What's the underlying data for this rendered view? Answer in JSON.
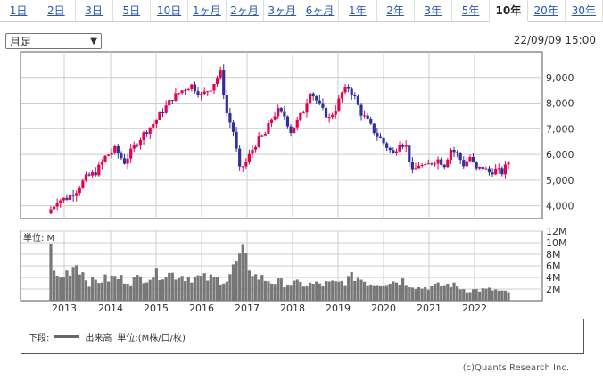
{
  "tabs": [
    "1日",
    "2日",
    "3日",
    "5日",
    "10日",
    "1ヶ月",
    "2ヶ月",
    "3ヶ月",
    "6ヶ月",
    "1年",
    "2年",
    "3年",
    "5年",
    "10年",
    "20年",
    "30年"
  ],
  "active_tab": "10年",
  "period_select": "月足",
  "datetime": "22/09/09 15:00",
  "volume_unit_label": "単位: M",
  "legend": {
    "prefix": "下段:",
    "series": "出来高",
    "unit": "単位:(M株/口/枚)"
  },
  "copyright": "(c)Quants Research Inc.",
  "colors": {
    "up": "#e8004f",
    "down": "#2f2fa0",
    "volume": "#777777",
    "grid": "#cccccc"
  },
  "chart_data": [
    {
      "type": "candlestick",
      "title": "",
      "ylim": [
        3500,
        10000
      ],
      "y_ticks": [
        "4,000",
        "5,000",
        "6,000",
        "7,000",
        "8,000",
        "9,000"
      ],
      "y_tick_values": [
        4000,
        5000,
        6000,
        7000,
        8000,
        9000
      ],
      "x_tick_labels": [
        "2013",
        "2014",
        "2015",
        "2016",
        "2017",
        "2018",
        "2019",
        "2020",
        "2021",
        "2022"
      ],
      "grid": true,
      "anchors": [
        [
          0,
          3700
        ],
        [
          3,
          4200
        ],
        [
          6,
          4300
        ],
        [
          9,
          4600
        ],
        [
          12,
          5100
        ],
        [
          15,
          5300
        ],
        [
          18,
          5900
        ],
        [
          21,
          6200
        ],
        [
          24,
          5700
        ],
        [
          27,
          6300
        ],
        [
          30,
          6800
        ],
        [
          33,
          7200
        ],
        [
          36,
          7700
        ],
        [
          39,
          8200
        ],
        [
          42,
          8500
        ],
        [
          45,
          8700
        ],
        [
          48,
          8300
        ],
        [
          51,
          8600
        ],
        [
          54,
          9200
        ],
        [
          56,
          7600
        ],
        [
          58,
          6900
        ],
        [
          60,
          5400
        ],
        [
          62,
          5700
        ],
        [
          64,
          6200
        ],
        [
          66,
          6600
        ],
        [
          68,
          6800
        ],
        [
          70,
          7400
        ],
        [
          72,
          7700
        ],
        [
          74,
          7500
        ],
        [
          76,
          6900
        ],
        [
          78,
          7300
        ],
        [
          80,
          7700
        ],
        [
          82,
          8500
        ],
        [
          84,
          8100
        ],
        [
          86,
          7700
        ],
        [
          88,
          7400
        ],
        [
          90,
          7800
        ],
        [
          92,
          8400
        ],
        [
          94,
          8600
        ],
        [
          96,
          8200
        ],
        [
          98,
          7600
        ],
        [
          100,
          7300
        ],
        [
          102,
          6900
        ],
        [
          104,
          6600
        ],
        [
          106,
          6300
        ],
        [
          108,
          6000
        ],
        [
          110,
          6500
        ],
        [
          112,
          6300
        ],
        [
          114,
          5300
        ],
        [
          116,
          5600
        ],
        [
          118,
          5500
        ],
        [
          120,
          5700
        ],
        [
          122,
          5800
        ],
        [
          124,
          5600
        ],
        [
          126,
          6200
        ],
        [
          128,
          6000
        ],
        [
          130,
          5600
        ],
        [
          132,
          5900
        ],
        [
          134,
          5400
        ],
        [
          136,
          5500
        ],
        [
          138,
          5300
        ],
        [
          140,
          5400
        ],
        [
          142,
          5300
        ],
        [
          144,
          5700
        ]
      ],
      "n_bars": 144
    },
    {
      "type": "bar",
      "title": "",
      "ylim": [
        0,
        12
      ],
      "y_ticks": [
        "2M",
        "4M",
        "6M",
        "8M",
        "10M",
        "12M"
      ],
      "y_tick_values": [
        2,
        4,
        6,
        8,
        10,
        12
      ],
      "x_tick_labels": [
        "2013",
        "2014",
        "2015",
        "2016",
        "2017",
        "2018",
        "2019",
        "2020",
        "2021",
        "2022"
      ],
      "anchors": [
        [
          0,
          11.8
        ],
        [
          1,
          4.5
        ],
        [
          3,
          3.8
        ],
        [
          8,
          6.5
        ],
        [
          12,
          3.2
        ],
        [
          20,
          4.0
        ],
        [
          25,
          3.5
        ],
        [
          35,
          4.8
        ],
        [
          45,
          4.0
        ],
        [
          55,
          3.6
        ],
        [
          58,
          6.5
        ],
        [
          60,
          7.8
        ],
        [
          64,
          4.2
        ],
        [
          70,
          3.2
        ],
        [
          80,
          2.8
        ],
        [
          90,
          3.0
        ],
        [
          95,
          4.2
        ],
        [
          100,
          3.0
        ],
        [
          110,
          3.5
        ],
        [
          115,
          2.2
        ],
        [
          125,
          2.8
        ],
        [
          130,
          1.8
        ],
        [
          138,
          1.9
        ],
        [
          144,
          1.2
        ]
      ],
      "n_bars": 144
    }
  ]
}
